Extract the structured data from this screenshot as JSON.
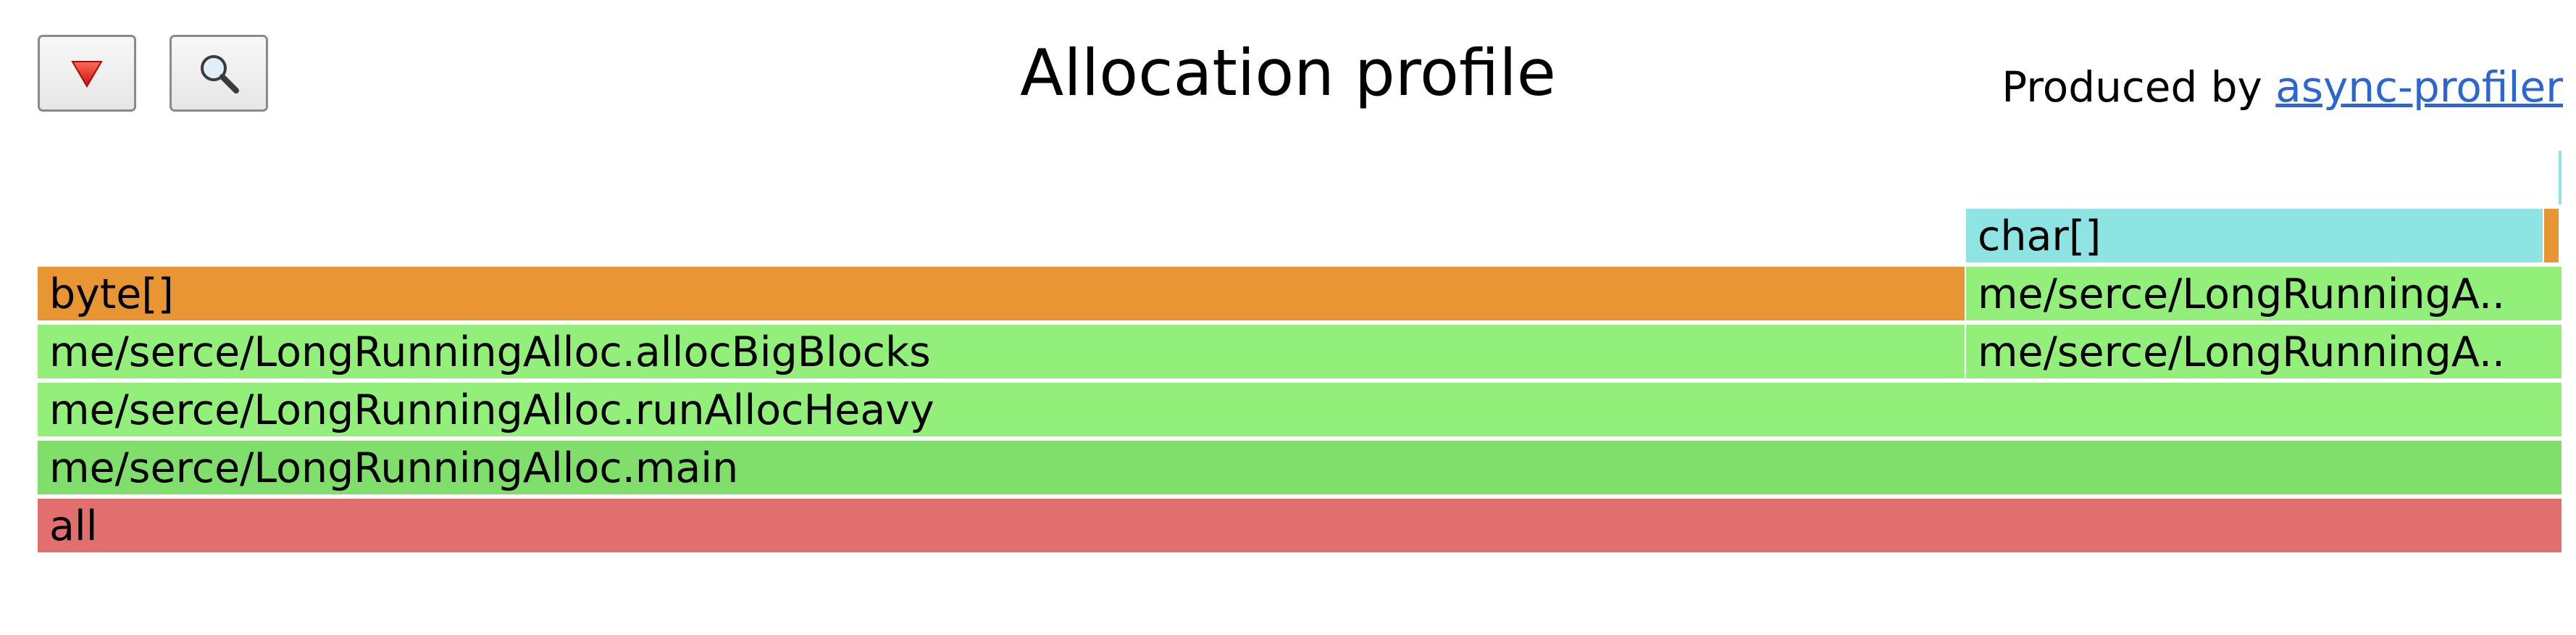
{
  "header": {
    "title": "Allocation profile",
    "credit_prefix": "Produced by ",
    "credit_link": "async-profiler"
  },
  "toolbar": {
    "reverse_icon": "red-triangle-down-icon",
    "search_icon": "magnifier-icon"
  },
  "colors": {
    "all": "#e06f6e",
    "java_main": "#7fdf6a",
    "java": "#92f07a",
    "alloc_byte": "#e89634",
    "alloc_char": "#8ee3e3",
    "link": "#2c66cf"
  },
  "frames": [
    {
      "name": "all",
      "label": "all",
      "color": "#e06f6e"
    },
    {
      "name": "LongRunningAlloc.main",
      "label": "me/serce/LongRunningAlloc.main",
      "color": "#7fdf6a"
    },
    {
      "name": "LongRunningAlloc.runAllocHeavy",
      "label": "me/serce/LongRunningAlloc.runAllocHeavy",
      "color": "#92f07a"
    },
    {
      "name": "LongRunningAlloc.allocBigBlocks",
      "label": "me/serce/LongRunningAlloc.allocBigBlocks",
      "color": "#92f07a"
    },
    {
      "name": "byte[] (allocBigBlocks)",
      "label": "byte[]",
      "color": "#e89634"
    },
    {
      "name": "LongRunningAlloc frame (right, level 3)",
      "label": "me/serce/LongRunningA..",
      "color": "#92f07a"
    },
    {
      "name": "LongRunningAlloc frame (right, level 4)",
      "label": "me/serce/LongRunningA..",
      "color": "#92f07a"
    },
    {
      "name": "char[]",
      "label": "char[]",
      "color": "#8ee3e3"
    },
    {
      "name": "small allocation frame",
      "label": "",
      "color": "#e89634"
    },
    {
      "name": "tiny allocation frame",
      "label": "",
      "color": "#8ee3e3"
    }
  ]
}
